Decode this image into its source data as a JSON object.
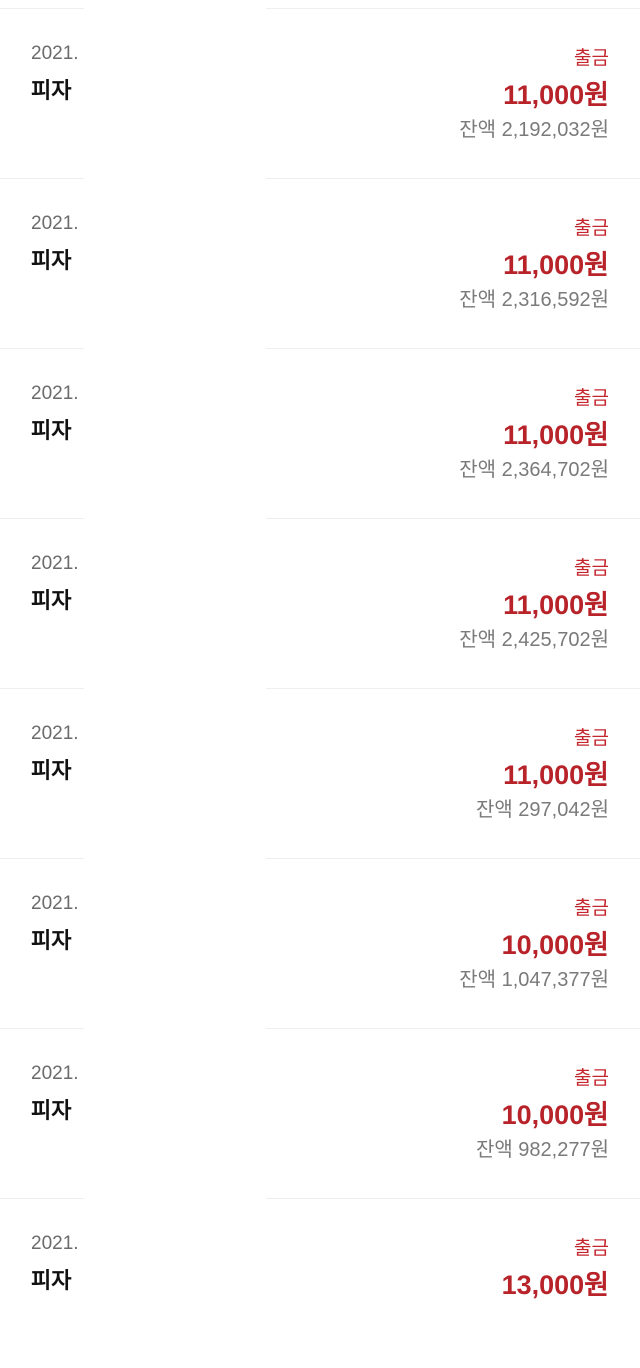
{
  "colors": {
    "accent": "#b8232a",
    "muted": "#7a7a7a"
  },
  "transactions": [
    {
      "date": "2021.",
      "name": "피자",
      "type": "출금",
      "amount": "11,000원",
      "balance": "잔액 2,192,032원"
    },
    {
      "date": "2021.",
      "name": "피자",
      "type": "출금",
      "amount": "11,000원",
      "balance": "잔액 2,316,592원"
    },
    {
      "date": "2021.",
      "name": "피자",
      "type": "출금",
      "amount": "11,000원",
      "balance": "잔액 2,364,702원"
    },
    {
      "date": "2021.",
      "name": "피자",
      "type": "출금",
      "amount": "11,000원",
      "balance": "잔액 2,425,702원"
    },
    {
      "date": "2021.",
      "name": "피자",
      "type": "출금",
      "amount": "11,000원",
      "balance": "잔액 297,042원"
    },
    {
      "date": "2021.",
      "name": "피자",
      "type": "출금",
      "amount": "10,000원",
      "balance": "잔액 1,047,377원"
    },
    {
      "date": "2021.",
      "name": "피자",
      "type": "출금",
      "amount": "10,000원",
      "balance": "잔액 982,277원"
    },
    {
      "date": "2021.",
      "name": "피자",
      "type": "출금",
      "amount": "13,000원",
      "balance": ""
    }
  ]
}
